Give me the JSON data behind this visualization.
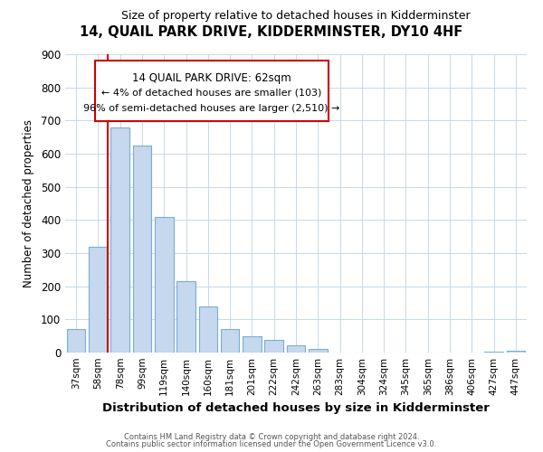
{
  "title": "14, QUAIL PARK DRIVE, KIDDERMINSTER, DY10 4HF",
  "subtitle": "Size of property relative to detached houses in Kidderminster",
  "xlabel": "Distribution of detached houses by size in Kidderminster",
  "ylabel": "Number of detached properties",
  "footer_lines": [
    "Contains HM Land Registry data © Crown copyright and database right 2024.",
    "Contains public sector information licensed under the Open Government Licence v3.0."
  ],
  "bar_labels": [
    "37sqm",
    "58sqm",
    "78sqm",
    "99sqm",
    "119sqm",
    "140sqm",
    "160sqm",
    "181sqm",
    "201sqm",
    "222sqm",
    "242sqm",
    "263sqm",
    "283sqm",
    "304sqm",
    "324sqm",
    "345sqm",
    "365sqm",
    "386sqm",
    "406sqm",
    "427sqm",
    "447sqm"
  ],
  "bar_values": [
    72,
    320,
    680,
    625,
    410,
    215,
    140,
    70,
    50,
    37,
    22,
    10,
    0,
    0,
    0,
    0,
    0,
    0,
    0,
    3,
    5
  ],
  "bar_color_normal": "#c5d8ed",
  "bar_color_edge": "#7aadd4",
  "highlight_index": 1,
  "vline_color": "#cc0000",
  "ylim": [
    0,
    900
  ],
  "yticks": [
    0,
    100,
    200,
    300,
    400,
    500,
    600,
    700,
    800,
    900
  ],
  "annotation_box": {
    "text_lines": [
      "14 QUAIL PARK DRIVE: 62sqm",
      "← 4% of detached houses are smaller (103)",
      "96% of semi-detached houses are larger (2,510) →"
    ]
  },
  "background_color": "#ffffff",
  "grid_color": "#c8d8e8"
}
